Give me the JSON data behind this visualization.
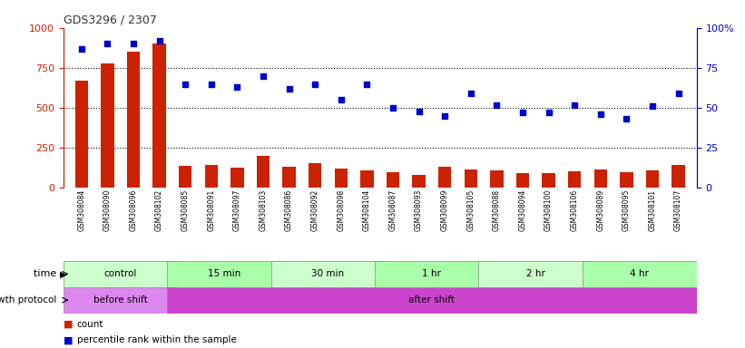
{
  "title": "GDS3296 / 2307",
  "samples": [
    "GSM308084",
    "GSM308090",
    "GSM308096",
    "GSM308102",
    "GSM308085",
    "GSM308091",
    "GSM308097",
    "GSM308103",
    "GSM308086",
    "GSM308092",
    "GSM308098",
    "GSM308104",
    "GSM308087",
    "GSM308093",
    "GSM308099",
    "GSM308105",
    "GSM308088",
    "GSM308094",
    "GSM308100",
    "GSM308106",
    "GSM308089",
    "GSM308095",
    "GSM308101",
    "GSM308107"
  ],
  "counts": [
    670,
    780,
    850,
    900,
    140,
    145,
    125,
    200,
    130,
    155,
    120,
    110,
    100,
    80,
    130,
    115,
    110,
    90,
    95,
    105,
    115,
    100,
    110,
    145
  ],
  "percentiles": [
    87,
    90,
    90,
    92,
    65,
    65,
    63,
    70,
    62,
    65,
    55,
    65,
    50,
    48,
    45,
    59,
    52,
    47,
    47,
    52,
    46,
    43,
    51,
    59
  ],
  "time_groups": [
    {
      "label": "control",
      "start": 0,
      "end": 4
    },
    {
      "label": "15 min",
      "start": 4,
      "end": 8
    },
    {
      "label": "30 min",
      "start": 8,
      "end": 12
    },
    {
      "label": "1 hr",
      "start": 12,
      "end": 16
    },
    {
      "label": "2 hr",
      "start": 16,
      "end": 20
    },
    {
      "label": "4 hr",
      "start": 20,
      "end": 24
    }
  ],
  "time_colors": [
    "#ccffcc",
    "#aaffaa",
    "#ccffcc",
    "#aaffaa",
    "#ccffcc",
    "#aaffaa"
  ],
  "protocol_groups": [
    {
      "label": "before shift",
      "start": 0,
      "end": 4
    },
    {
      "label": "after shift",
      "start": 4,
      "end": 24
    }
  ],
  "proto_colors": [
    "#dd88ee",
    "#cc44cc"
  ],
  "bar_color": "#cc2200",
  "dot_color": "#0000cc",
  "left_ylim": [
    0,
    1000
  ],
  "right_ylim": [
    0,
    100
  ],
  "left_yticks": [
    0,
    250,
    500,
    750,
    1000
  ],
  "right_yticks": [
    0,
    25,
    50,
    75,
    100
  ],
  "grid_values": [
    250,
    500,
    750
  ],
  "background_color": "#ffffff",
  "title_color": "#333333",
  "left_axis_color": "#cc2200",
  "right_axis_color": "#0000cc"
}
